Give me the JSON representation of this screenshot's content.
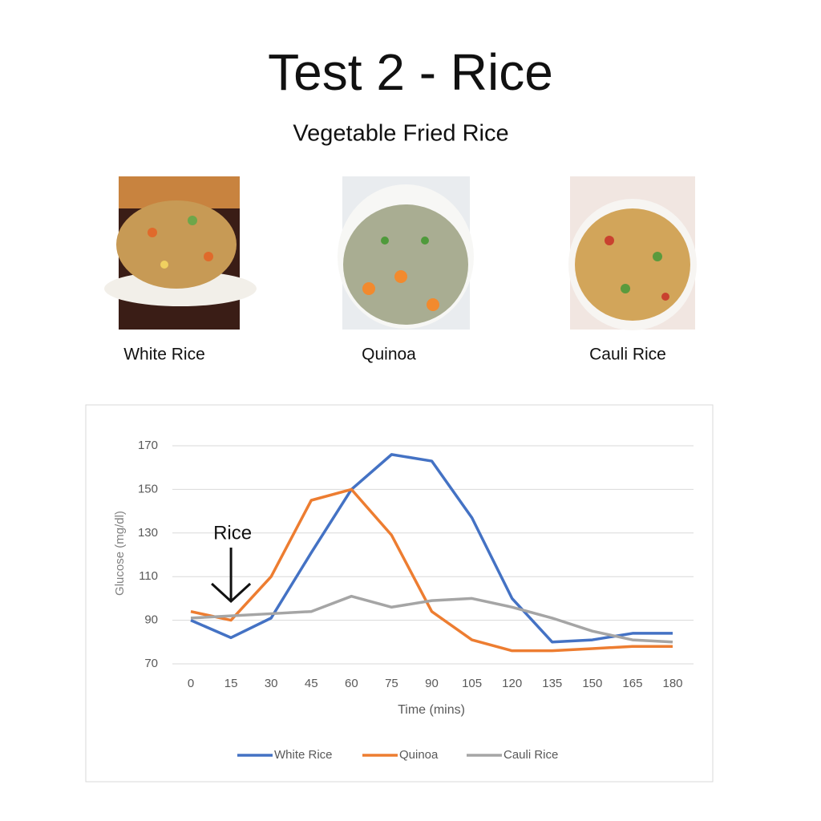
{
  "header": {
    "title": "Test 2 - Rice",
    "subtitle": "Vegetable Fried Rice"
  },
  "foods": [
    "White Rice",
    "Quinoa",
    "Cauli Rice"
  ],
  "chart_data": {
    "type": "line",
    "x": [
      0,
      15,
      30,
      45,
      60,
      75,
      90,
      105,
      120,
      135,
      150,
      165,
      180
    ],
    "xlim": [
      0,
      180
    ],
    "xticks": [
      0,
      15,
      30,
      45,
      60,
      75,
      90,
      105,
      120,
      135,
      150,
      165,
      180
    ],
    "ylim": [
      70,
      170
    ],
    "yticks": [
      70,
      90,
      110,
      130,
      150,
      170
    ],
    "grid": true,
    "x_label": "Time (mins)",
    "y_label": "Glucose (mg/dl)",
    "annotation": {
      "text": "Rice",
      "x": 15
    },
    "legend": "bottom",
    "series": [
      {
        "name": "White Rice",
        "color": "#4472c4",
        "values": [
          90,
          82,
          91,
          121,
          150,
          166,
          163,
          137,
          100,
          80,
          81,
          84,
          84
        ]
      },
      {
        "name": "Quinoa",
        "color": "#ed7d31",
        "values": [
          94,
          90,
          110,
          145,
          150,
          129,
          94,
          81,
          76,
          76,
          77,
          78,
          78
        ]
      },
      {
        "name": "Cauli Rice",
        "color": "#a5a5a5",
        "values": [
          91,
          92,
          93,
          94,
          101,
          96,
          99,
          100,
          96,
          91,
          85,
          81,
          80
        ]
      }
    ]
  }
}
